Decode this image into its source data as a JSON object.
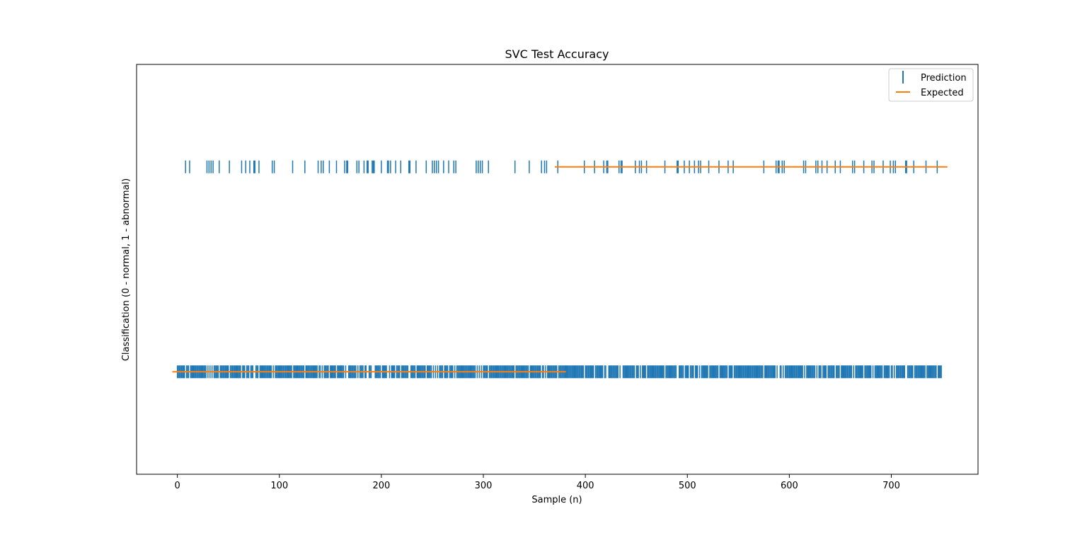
{
  "chart_data": {
    "type": "scatter",
    "title": "SVC Test Accuracy",
    "xlabel": "Sample (n)",
    "ylabel": "Classification (0 - normal, 1 - abnormal)",
    "xlim": [
      -40,
      785
    ],
    "ylim": [
      -0.5,
      1.5
    ],
    "x_ticks": [
      0,
      100,
      200,
      300,
      400,
      500,
      600,
      700
    ],
    "x_tick_labels": [
      "0",
      "100",
      "200",
      "300",
      "400",
      "500",
      "600",
      "700"
    ],
    "y_ticks": [],
    "grid": false,
    "legend_position": "top-right",
    "n_samples": 750,
    "series": [
      {
        "name": "Prediction",
        "marker": "vertical-line",
        "color": "#1f77b4",
        "abnormal_indices": [
          8,
          12,
          29,
          31,
          33,
          35,
          41,
          51,
          63,
          67,
          71,
          75,
          76,
          80,
          93,
          95,
          113,
          125,
          138,
          141,
          143,
          149,
          156,
          164,
          166,
          167,
          176,
          178,
          183,
          186,
          187,
          191,
          192,
          193,
          200,
          206,
          207,
          209,
          214,
          219,
          227,
          228,
          234,
          244,
          250,
          252,
          254,
          256,
          261,
          266,
          271,
          273,
          293,
          295,
          297,
          299,
          305,
          331,
          345,
          357,
          360,
          362,
          373,
          399,
          409,
          418,
          421,
          422,
          433,
          435,
          436,
          449,
          453,
          455,
          460,
          478,
          490,
          491,
          497,
          502,
          507,
          511,
          513,
          521,
          531,
          540,
          545,
          575,
          587,
          589,
          590,
          593,
          595,
          614,
          616,
          626,
          628,
          632,
          637,
          645,
          650,
          662,
          664,
          673,
          681,
          683,
          692,
          699,
          702,
          704,
          714,
          715,
          722,
          734,
          745
        ],
        "normal_value": 0,
        "abnormal_value": 1
      },
      {
        "name": "Expected",
        "marker": "line",
        "color": "#ff7f0e",
        "segments": [
          {
            "x": [
              -5,
              381
            ],
            "y": 0
          },
          {
            "x": [
              370,
              755
            ],
            "y": 1
          }
        ]
      }
    ]
  }
}
